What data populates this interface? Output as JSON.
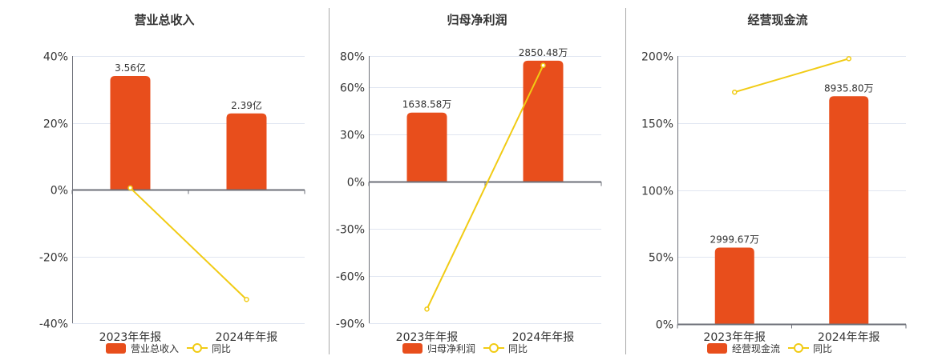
{
  "colors": {
    "bar": "#e84e1c",
    "line": "#f1cb14",
    "grid": "#e0e6f1",
    "axis": "#6e7079",
    "divider": "#a8a8a8"
  },
  "legend": {
    "line_label": "同比"
  },
  "chart_data": [
    {
      "type": "bar",
      "title": "营业总收入",
      "categories": [
        "2023年年报",
        "2024年年报"
      ],
      "series": [
        {
          "name": "营业总收入",
          "type": "bar",
          "labels": [
            "3.56亿",
            "2.39亿"
          ],
          "values_raw": [
            356000000,
            239000000
          ],
          "values_axis_pct": [
            34,
            22.8
          ]
        },
        {
          "name": "同比",
          "type": "line",
          "values": [
            0.5,
            -32.9
          ]
        }
      ],
      "yticks": [
        "40%",
        "20%",
        "0%",
        "-20%",
        "-40%"
      ],
      "ytick_values": [
        40,
        20,
        0,
        -20,
        -40
      ],
      "ylim": [
        -40,
        40
      ],
      "grid": true,
      "legend_position": "bottom"
    },
    {
      "type": "bar",
      "title": "归母净利润",
      "categories": [
        "2023年年报",
        "2024年年报"
      ],
      "series": [
        {
          "name": "归母净利润",
          "type": "bar",
          "labels": [
            "1638.58万",
            "2850.48万"
          ],
          "values_raw": [
            16385800,
            28504800
          ],
          "values_axis_pct": [
            44,
            77
          ]
        },
        {
          "name": "同比",
          "type": "line",
          "values": [
            -81,
            74
          ]
        }
      ],
      "yticks": [
        "80%",
        "60%",
        "30%",
        "0%",
        "-30%",
        "-60%",
        "-90%"
      ],
      "ytick_values": [
        80,
        60,
        30,
        0,
        -30,
        -60,
        -90
      ],
      "ylim": [
        -90,
        80
      ],
      "grid": true,
      "legend_position": "bottom"
    },
    {
      "type": "bar",
      "title": "经营现金流",
      "categories": [
        "2023年年报",
        "2024年年报"
      ],
      "series": [
        {
          "name": "经营现金流",
          "type": "bar",
          "labels": [
            "2999.67万",
            "8935.80万"
          ],
          "values_raw": [
            29996700,
            89358000
          ],
          "values_axis_pct": [
            57,
            170
          ]
        },
        {
          "name": "同比",
          "type": "line",
          "values": [
            173,
            198
          ]
        }
      ],
      "yticks": [
        "200%",
        "150%",
        "100%",
        "50%",
        "0%"
      ],
      "ytick_values": [
        200,
        150,
        100,
        50,
        0
      ],
      "ylim": [
        0,
        200
      ],
      "grid": true,
      "legend_position": "bottom"
    }
  ]
}
